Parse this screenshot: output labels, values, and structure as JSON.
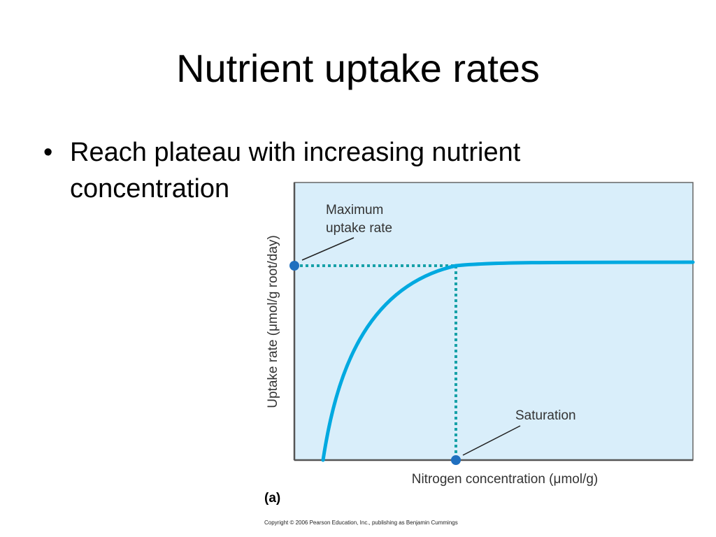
{
  "slide": {
    "title": "Nutrient uptake rates",
    "bullet_symbol": "•",
    "bullet_line_1": "Reach plateau with increasing nutrient",
    "bullet_line_2": "concentration"
  },
  "figure": {
    "panel_label": "(a)",
    "copyright": "Copyright © 2006 Pearson Education, Inc., publishing as Benjamin Cummings"
  },
  "chart_data": {
    "type": "line",
    "title": "",
    "xlabel": "Nitrogen concentration (μmol/g)",
    "ylabel": "Uptake rate (μmol/g root/day)",
    "ticks_shown": false,
    "grid": false,
    "annotations": [
      {
        "text_line_1": "Maximum",
        "text_line_2": "uptake rate",
        "target": "y-axis point at maximum uptake"
      },
      {
        "text": "Saturation",
        "target": "x-axis point at saturation concentration"
      }
    ],
    "colors": {
      "plot_background": "#d9eefa",
      "curve": "#00a9e0",
      "guide": "#17a1a8",
      "marker": "#1f6fbf",
      "frame": "#555555"
    }
  }
}
